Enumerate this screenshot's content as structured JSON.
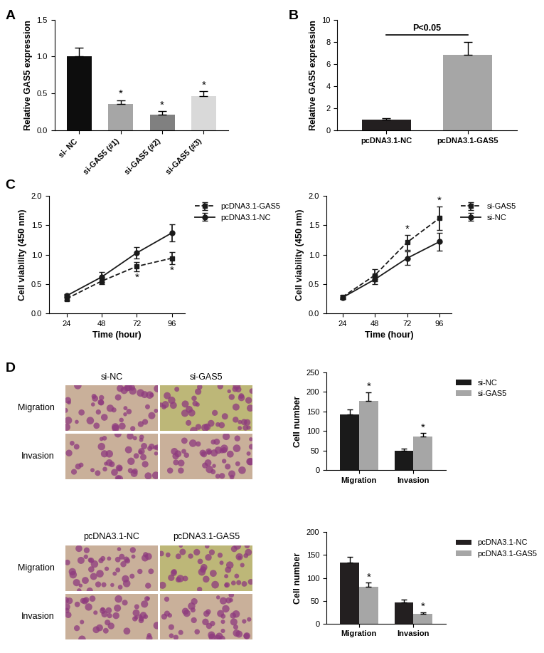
{
  "panel_labels": [
    "A",
    "B",
    "C",
    "D"
  ],
  "chart_data": [
    {
      "type": "bar",
      "categories": [
        "si- NC",
        "si-GAS5 (#1)",
        "si-GAS5 (#2)",
        "si-GAS5 (#3)"
      ],
      "values": [
        1.0,
        0.36,
        0.22,
        0.47
      ],
      "errors": [
        0.12,
        0.05,
        0.04,
        0.06
      ],
      "colors": [
        "#0d0d0d",
        "#a6a6a6",
        "#808080",
        "#d9d9d9"
      ],
      "annotations": [
        null,
        "*",
        "*",
        "*"
      ],
      "y_label": "Relative GAS5 expression",
      "ylim": [
        0,
        1.5
      ],
      "yticks": [
        0.0,
        0.5,
        1.0,
        1.5
      ]
    },
    {
      "type": "bar",
      "categories": [
        "pcDNA3.1-NC",
        "pcDNA3.1-GAS5"
      ],
      "values": [
        1.0,
        6.8
      ],
      "errors": [
        0.1,
        1.2
      ],
      "colors": [
        "#231f20",
        "#a6a6a6"
      ],
      "annotation": "P<0.05",
      "y_label": "Relative GAS5 expression",
      "ylim": [
        0,
        10
      ],
      "yticks": [
        0,
        2,
        4,
        6,
        8,
        10
      ]
    },
    {
      "type": "line",
      "x": [
        24,
        48,
        72,
        96
      ],
      "xlim": [
        12,
        105
      ],
      "xticks": [
        24,
        48,
        72,
        96
      ],
      "ylim": [
        0,
        2.0
      ],
      "yticks": [
        0.0,
        0.5,
        1.0,
        1.5,
        2.0
      ],
      "x_label": "Time (hour)",
      "y_label": "Cell viability (450 nm)",
      "legend": "upper left",
      "series": [
        {
          "name": "pcDNA3.1-GAS5",
          "color": "#1a1a1a",
          "marker": "square",
          "line_style": "dashed",
          "values": [
            0.25,
            0.55,
            0.8,
            0.94
          ],
          "errors": [
            0.03,
            0.05,
            0.08,
            0.1
          ],
          "annotations": [
            null,
            null,
            "*",
            "*"
          ]
        },
        {
          "name": "pcDNA3.1-NC",
          "color": "#1a1a1a",
          "marker": "circle",
          "line_style": "solid",
          "values": [
            0.3,
            0.62,
            1.03,
            1.37
          ],
          "errors": [
            0.03,
            0.08,
            0.1,
            0.15
          ],
          "annotations": [
            null,
            null,
            null,
            null
          ]
        }
      ]
    },
    {
      "type": "line",
      "x": [
        24,
        48,
        72,
        96
      ],
      "xlim": [
        12,
        105
      ],
      "xticks": [
        24,
        48,
        72,
        96
      ],
      "ylim": [
        0,
        2.0
      ],
      "yticks": [
        0.0,
        0.5,
        1.0,
        1.5,
        2.0
      ],
      "x_label": "Time (hour)",
      "y_label": "Cell viability (450 nm)",
      "legend": "upper left",
      "series": [
        {
          "name": "si-GAS5",
          "color": "#1a1a1a",
          "marker": "square",
          "line_style": "dashed",
          "values": [
            0.28,
            0.65,
            1.21,
            1.62
          ],
          "errors": [
            0.03,
            0.1,
            0.13,
            0.2
          ],
          "annotations": [
            null,
            null,
            "*",
            "*"
          ]
        },
        {
          "name": "si-NC",
          "color": "#1a1a1a",
          "marker": "circle",
          "line_style": "solid",
          "values": [
            0.27,
            0.58,
            0.94,
            1.22
          ],
          "errors": [
            0.03,
            0.08,
            0.12,
            0.15
          ],
          "annotations": [
            null,
            null,
            null,
            null
          ]
        }
      ]
    },
    {
      "type": "bar",
      "categories": [
        "Migration",
        "Invasion"
      ],
      "y_label": "Cell number",
      "ylim": [
        0,
        250
      ],
      "yticks": [
        0,
        50,
        100,
        150,
        200,
        250
      ],
      "legend": "upper left",
      "series": [
        {
          "name": "si-NC",
          "color": "#1a1a1a",
          "values": [
            143,
            50
          ],
          "errors": [
            12,
            5
          ],
          "annotations": [
            null,
            null
          ]
        },
        {
          "name": "si-GAS5",
          "color": "#a6a6a6",
          "values": [
            177,
            85
          ],
          "errors": [
            22,
            10
          ],
          "annotations": [
            "*",
            "*"
          ]
        }
      ]
    },
    {
      "type": "bar",
      "categories": [
        "Migration",
        "Invasion"
      ],
      "y_label": "Cell number",
      "ylim": [
        0,
        200
      ],
      "yticks": [
        0,
        50,
        100,
        150,
        200
      ],
      "legend": "upper left",
      "series": [
        {
          "name": "pcDNA3.1-NC",
          "color": "#231f20",
          "values": [
            133,
            46
          ],
          "errors": [
            13,
            6
          ],
          "annotations": [
            null,
            null
          ]
        },
        {
          "name": "pcDNA3.1-GAS5",
          "color": "#a6a6a6",
          "values": [
            81,
            22
          ],
          "errors": [
            9,
            3
          ],
          "annotations": [
            "*",
            "*"
          ]
        }
      ]
    }
  ],
  "image_panels": [
    {
      "columns": [
        "si-NC",
        "si-GAS5"
      ],
      "rows": [
        "Migration",
        "Invasion"
      ]
    },
    {
      "columns": [
        "pcDNA3.1-NC",
        "pcDNA3.1-GAS5"
      ],
      "rows": [
        "Migration",
        "Invasion"
      ]
    }
  ]
}
